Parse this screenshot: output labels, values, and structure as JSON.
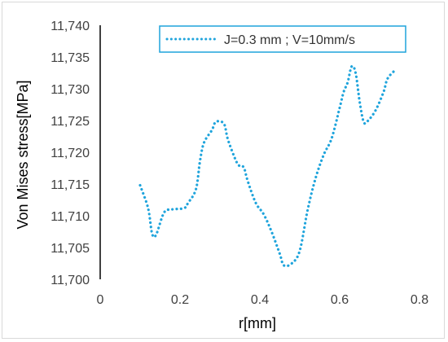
{
  "chart_data": {
    "type": "line",
    "xlabel": "r[mm]",
    "ylabel": "Von Mises stress[MPa]",
    "xlim": [
      0,
      0.8
    ],
    "ylim": [
      11700,
      11740
    ],
    "x_ticks": [
      "0",
      "0.2",
      "0.4",
      "0.6",
      "0.8"
    ],
    "x_tick_values": [
      0,
      0.2,
      0.4,
      0.6,
      0.8
    ],
    "y_ticks": [
      "11,700",
      "11,705",
      "11,710",
      "11,715",
      "11,720",
      "11,725",
      "11,730",
      "11,735",
      "11,740"
    ],
    "y_tick_values": [
      11700,
      11705,
      11710,
      11715,
      11720,
      11725,
      11730,
      11735,
      11740
    ],
    "grid": false,
    "legend_position": "top-right",
    "series": [
      {
        "name": "J=0.3 mm ; V=10mm/s",
        "color": "#1fa4dc",
        "style": "dotted",
        "x": [
          0.1,
          0.12,
          0.13,
          0.14,
          0.16,
          0.18,
          0.21,
          0.22,
          0.24,
          0.25,
          0.26,
          0.28,
          0.29,
          0.31,
          0.32,
          0.34,
          0.35,
          0.36,
          0.37,
          0.39,
          0.41,
          0.43,
          0.45,
          0.46,
          0.48,
          0.5,
          0.52,
          0.54,
          0.56,
          0.58,
          0.6,
          0.61,
          0.62,
          0.63,
          0.64,
          0.65,
          0.66,
          0.67,
          0.69,
          0.71,
          0.72,
          0.74
        ],
        "y": [
          11714.8,
          11711.2,
          11707.2,
          11707.0,
          11710.5,
          11711.0,
          11711.2,
          11712.0,
          11714.2,
          11718.6,
          11721.5,
          11723.5,
          11724.8,
          11724.5,
          11722.0,
          11718.7,
          11717.8,
          11717.6,
          11715.4,
          11712.0,
          11710.2,
          11707.4,
          11704.0,
          11702.2,
          11702.5,
          11704.5,
          11711.0,
          11716.0,
          11719.6,
          11722.2,
          11727.0,
          11729.5,
          11731.0,
          11733.5,
          11732.5,
          11728.0,
          11724.8,
          11724.9,
          11726.6,
          11729.5,
          11731.6,
          11733.0
        ]
      }
    ]
  }
}
